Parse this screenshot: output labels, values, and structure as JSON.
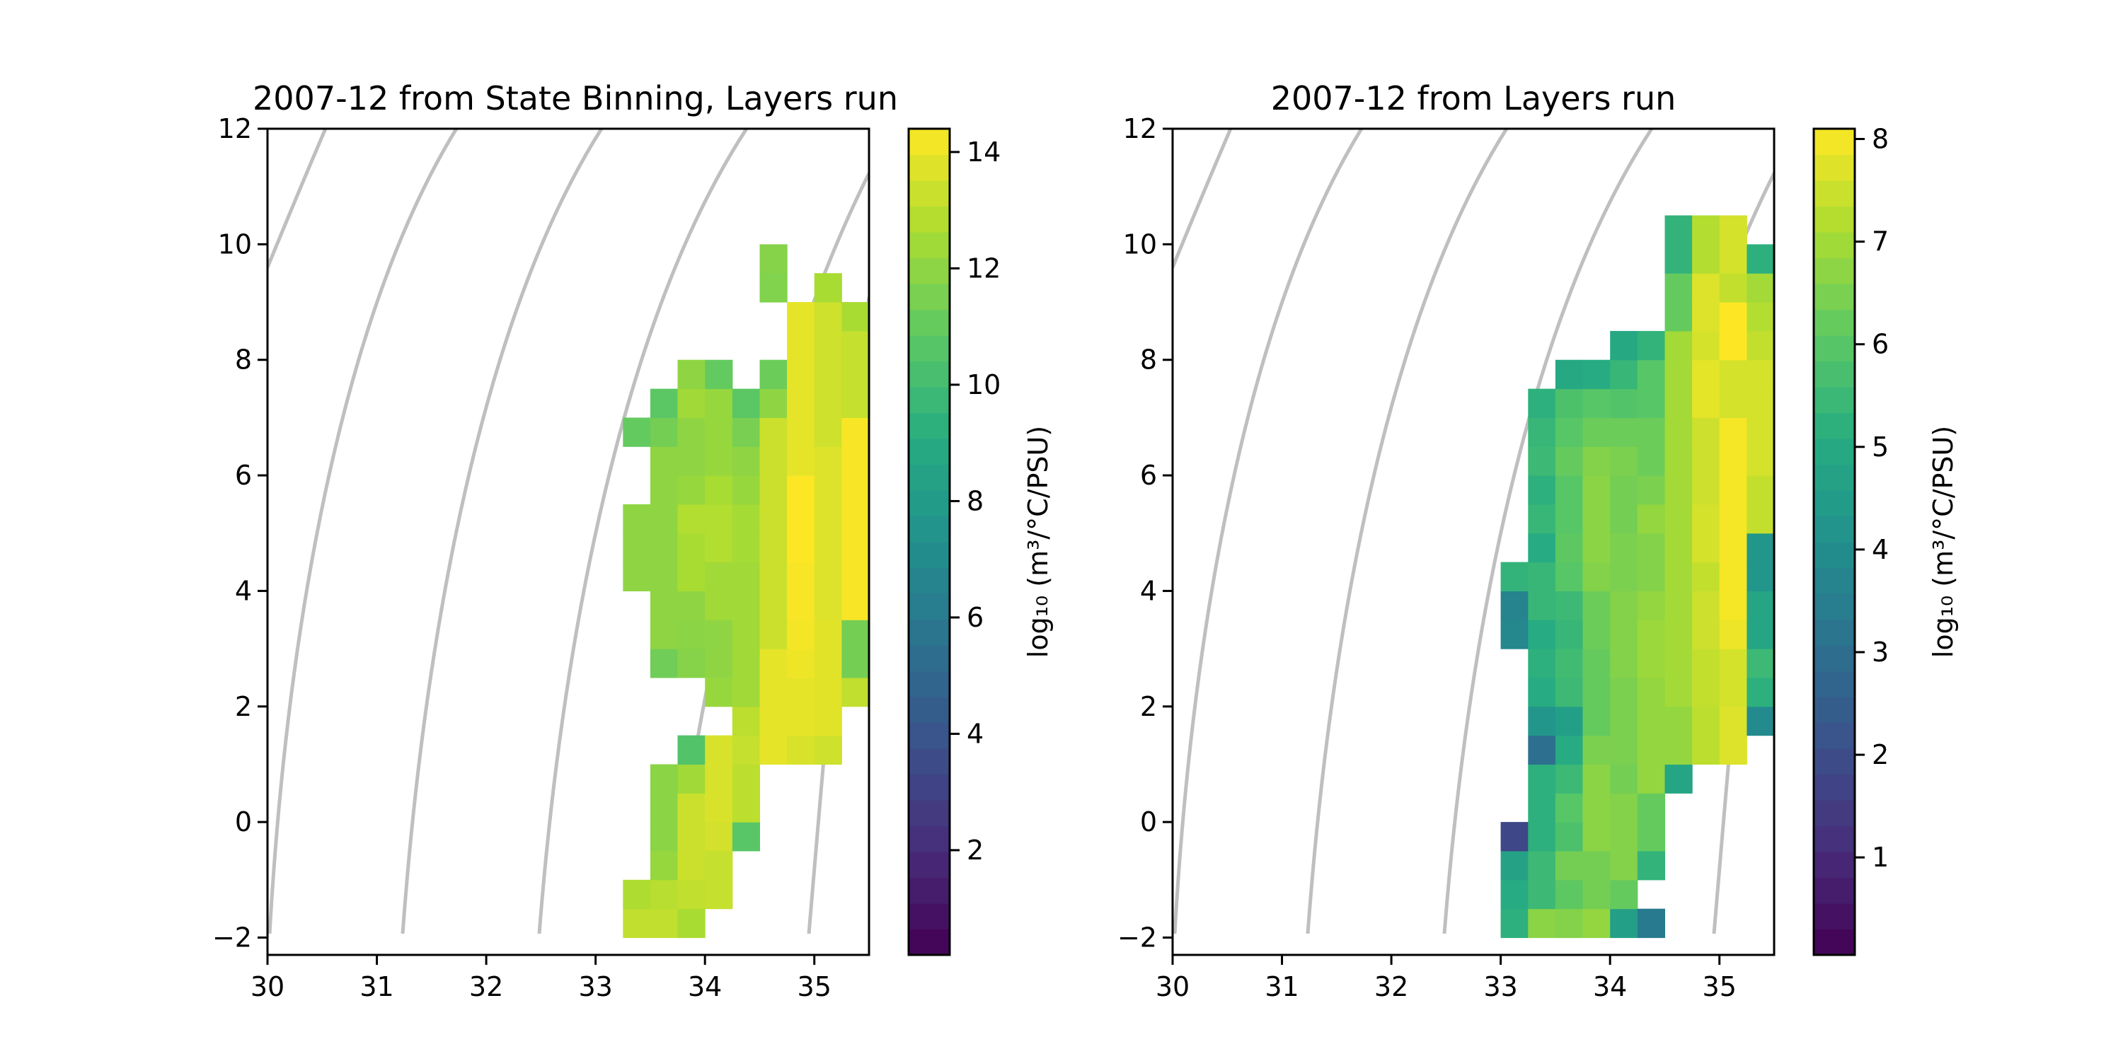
{
  "chart_data": [
    {
      "type": "heatmap",
      "title": "2007-12 from State Binning, Layers run",
      "xlim": [
        30,
        35.5
      ],
      "ylim": [
        -2.3,
        12
      ],
      "xticks": [
        "30",
        "31",
        "32",
        "33",
        "34",
        "35"
      ],
      "yticks": [
        "−2",
        "0",
        "2",
        "4",
        "6",
        "8",
        "10",
        "12"
      ],
      "colorbar": {
        "label": "log₁₀ (m³/°C/PSU)",
        "range": [
          0.2,
          14.4
        ],
        "ticks": [
          "2",
          "4",
          "6",
          "8",
          "10",
          "12",
          "14"
        ],
        "colormap": "viridis"
      },
      "bin": {
        "dx": 0.25,
        "dy": 0.5
      },
      "grid": false,
      "columns": [
        {
          "x": 33.25,
          "y0": -2.0,
          "values": [
            13.1,
            12.7,
            null,
            null,
            null,
            null,
            null,
            null,
            null,
            null,
            null,
            null,
            12.0,
            12.0,
            12.0,
            null,
            null,
            11.0
          ]
        },
        {
          "x": 33.5,
          "y0": -2.0,
          "values": [
            13.1,
            12.9,
            12.2,
            11.9,
            11.9,
            11.9,
            null,
            null,
            null,
            11.3,
            12.0,
            12.0,
            12.0,
            12.0,
            12.0,
            12.0,
            12.0,
            11.4,
            10.8
          ]
        },
        {
          "x": 33.75,
          "y0": -2.0,
          "values": [
            12.6,
            13.1,
            13.3,
            13.3,
            13.3,
            12.4,
            10.5,
            null,
            null,
            11.8,
            11.9,
            12.0,
            12.6,
            12.6,
            12.8,
            12.2,
            12.0,
            12.0,
            12.4,
            12.0
          ]
        },
        {
          "x": 34.0,
          "y0": -1.5,
          "values": [
            13.2,
            13.2,
            13.5,
            13.6,
            13.6,
            13.6,
            null,
            12.2,
            12.0,
            12.0,
            12.4,
            12.4,
            12.8,
            12.8,
            12.6,
            12.2,
            12.2,
            12.2,
            11.0
          ]
        },
        {
          "x": 34.25,
          "y0": -0.5,
          "values": [
            10.7,
            13.0,
            13.0,
            13.2,
            13.0,
            12.4,
            12.4,
            12.4,
            12.4,
            12.4,
            12.5,
            12.5,
            12.2,
            12.0,
            11.5,
            10.8
          ]
        },
        {
          "x": 34.5,
          "y0": 1.0,
          "values": [
            13.9,
            13.9,
            13.9,
            13.9,
            13.3,
            13.3,
            13.3,
            13.3,
            13.3,
            13.3,
            13.3,
            13.3,
            12.0,
            11.2,
            null,
            null,
            11.7,
            11.8
          ]
        },
        {
          "x": 34.75,
          "y0": 1.0,
          "values": [
            13.6,
            13.9,
            13.9,
            14.1,
            14.2,
            14.3,
            14.3,
            14.4,
            14.4,
            14.4,
            13.9,
            13.9,
            13.9,
            13.9,
            13.9,
            13.9
          ]
        },
        {
          "x": 35.0,
          "y0": 1.0,
          "values": [
            13.4,
            13.8,
            13.8,
            13.8,
            13.8,
            13.7,
            13.7,
            13.7,
            13.7,
            13.7,
            13.7,
            13.4,
            13.4,
            13.4,
            13.4,
            13.4,
            12.6
          ]
        },
        {
          "x": 35.25,
          "y0": 2.0,
          "values": [
            13.1,
            11.4,
            11.4,
            14.3,
            14.3,
            14.3,
            14.3,
            14.3,
            14.3,
            14.3,
            13.2,
            13.2,
            13.2,
            12.6
          ]
        }
      ]
    },
    {
      "type": "heatmap",
      "title": "2007-12 from Layers run",
      "xlim": [
        30,
        35.5
      ],
      "ylim": [
        -2.3,
        12
      ],
      "xticks": [
        "30",
        "31",
        "32",
        "33",
        "34",
        "35"
      ],
      "yticks": [
        "−2",
        "0",
        "2",
        "4",
        "6",
        "8",
        "10",
        "12"
      ],
      "colorbar": {
        "label": "log₁₀ (m³/°C/PSU)",
        "range": [
          0.05,
          8.1
        ],
        "ticks": [
          "1",
          "2",
          "3",
          "4",
          "5",
          "6",
          "7",
          "8"
        ],
        "colormap": "viridis"
      },
      "bin": {
        "dx": 0.25,
        "dy": 0.5
      },
      "grid": false,
      "columns": [
        {
          "x": 33.0,
          "y0": -2.0,
          "values": [
            5.2,
            5.0,
            4.7,
            1.8,
            null,
            null,
            null,
            null,
            null,
            null,
            3.8,
            3.7,
            5.3
          ]
        },
        {
          "x": 33.25,
          "y0": -2.0,
          "values": [
            6.7,
            5.5,
            5.5,
            5.2,
            5.2,
            5.2,
            3.0,
            4.3,
            5.0,
            5.2,
            5.0,
            5.4,
            5.4,
            5.0,
            5.4,
            5.2,
            5.5,
            5.4,
            5.2
          ]
        },
        {
          "x": 33.5,
          "y0": -2.0,
          "values": [
            6.6,
            6.1,
            6.4,
            5.8,
            6.0,
            5.5,
            5.0,
            4.6,
            5.5,
            5.6,
            5.4,
            5.5,
            6.0,
            6.1,
            6.0,
            6.0,
            6.2,
            6.0,
            5.8,
            4.9
          ]
        },
        {
          "x": 33.75,
          "y0": -2.0,
          "values": [
            6.8,
            6.4,
            6.4,
            6.7,
            6.7,
            6.7,
            6.5,
            6.2,
            6.2,
            6.2,
            6.3,
            6.3,
            6.6,
            6.7,
            6.7,
            6.7,
            6.6,
            6.3,
            6.0,
            5.0
          ]
        },
        {
          "x": 34.0,
          "y0": -2.0,
          "values": [
            4.6,
            6.2,
            6.6,
            6.6,
            6.6,
            6.4,
            6.5,
            6.5,
            6.5,
            6.6,
            6.6,
            6.6,
            6.5,
            6.5,
            6.4,
            6.4,
            6.5,
            6.3,
            5.9,
            5.4,
            4.9
          ]
        },
        {
          "x": 34.25,
          "y0": -2.0,
          "values": [
            3.4,
            null,
            5.3,
            6.2,
            6.2,
            6.8,
            6.8,
            6.8,
            6.8,
            6.9,
            6.9,
            6.8,
            6.6,
            6.6,
            6.8,
            6.5,
            6.3,
            6.3,
            6.0,
            6.0,
            5.3
          ]
        },
        {
          "x": 34.5,
          "y0": 0.5,
          "values": [
            4.8,
            6.8,
            6.8,
            7.0,
            7.0,
            7.0,
            7.0,
            7.0,
            7.0,
            7.0,
            7.0,
            7.0,
            7.0,
            7.0,
            7.0,
            7.0,
            6.2,
            6.2,
            5.3,
            5.3
          ]
        },
        {
          "x": 34.75,
          "y0": 1.0,
          "values": [
            7.3,
            7.3,
            7.4,
            7.4,
            7.5,
            7.5,
            7.4,
            7.6,
            7.6,
            7.5,
            7.5,
            7.5,
            7.8,
            7.8,
            7.6,
            7.7,
            7.7,
            7.2,
            7.2
          ]
        },
        {
          "x": 35.0,
          "y0": 1.0,
          "values": [
            7.7,
            7.7,
            7.6,
            7.6,
            7.9,
            8.0,
            8.0,
            8.0,
            8.0,
            8.0,
            8.0,
            8.0,
            7.6,
            7.6,
            8.1,
            8.1,
            7.4,
            7.6,
            7.6
          ]
        },
        {
          "x": 35.25,
          "y0": 1.5,
          "values": [
            3.9,
            5.2,
            5.5,
            4.8,
            4.8,
            4.3,
            4.3,
            7.4,
            7.4,
            7.6,
            7.6,
            7.6,
            7.6,
            7.4,
            7.2,
            7.0,
            5.2
          ]
        }
      ]
    }
  ]
}
